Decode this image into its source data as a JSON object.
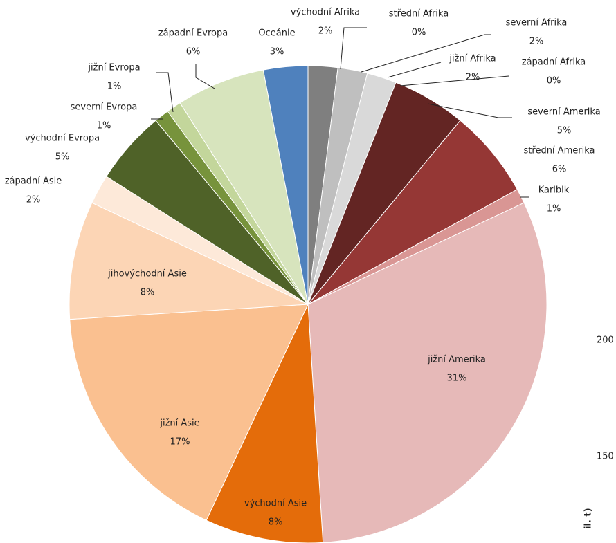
{
  "chart_data": {
    "type": "pie",
    "categories": [
      "východní Afrika",
      "střední Afrika",
      "severní Afrika",
      "jižní Afrika",
      "západní Afrika",
      "severní Amerika",
      "střední Amerika",
      "Karibik",
      "jižní Amerika",
      "východní Asie",
      "jižní Asie",
      "jihovýchodní Asie",
      "západní Asie",
      "východní Evropa",
      "severní Evropa",
      "jižní Evropa",
      "západní Evropa",
      "Oceánie"
    ],
    "values": [
      2,
      0,
      2,
      2,
      0,
      5,
      6,
      1,
      31,
      8,
      17,
      8,
      2,
      5,
      1,
      1,
      6,
      3
    ],
    "value_labels": [
      "2%",
      "0%",
      "2%",
      "2%",
      "0%",
      "5%",
      "6%",
      "1%",
      "31%",
      "8%",
      "17%",
      "8%",
      "2%",
      "5%",
      "1%",
      "1%",
      "6%",
      "3%"
    ],
    "colors": [
      "#7f7f7f",
      "#a5a5a5",
      "#bfbfbf",
      "#d9d9d9",
      "#f2f2f2",
      "#632523",
      "#953735",
      "#d99694",
      "#e6b9b8",
      "#e46c0a",
      "#fac090",
      "#fcd5b5",
      "#fde9d9",
      "#4f6228",
      "#77933c",
      "#c3d69b",
      "#d7e4bd",
      "#4f81bd"
    ],
    "partial_texts": [
      "200",
      "150",
      "il. t)"
    ]
  }
}
